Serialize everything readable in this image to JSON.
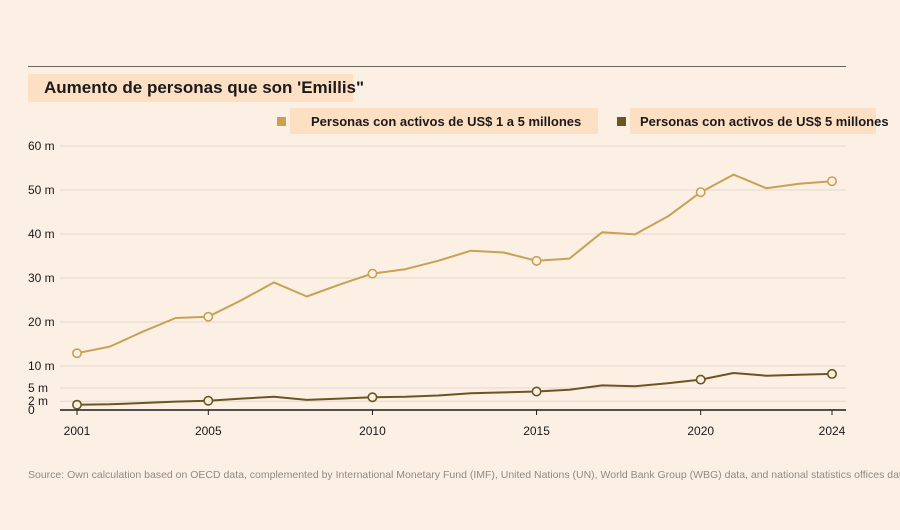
{
  "title": "Aumento de personas que son 'Emillis\"",
  "source": "Source: Own calculation based on OECD data, complemented by International Monetary Fund (IMF), United Nations (UN), World Bank Group (WBG) data, and national statistics offices data.",
  "colors": {
    "series1": "#c9a055",
    "series2": "#6b5522",
    "background": "#fcf0e5",
    "legend_bg": "#fde0c4"
  },
  "chart_data": {
    "type": "line",
    "title": "Aumento de personas que son 'Emillis\"",
    "xlabel": "",
    "ylabel": "",
    "xlim": [
      2001,
      2024
    ],
    "ylim": [
      0,
      60
    ],
    "x_ticks": [
      2001,
      2005,
      2010,
      2015,
      2020,
      2024
    ],
    "y_ticks": [
      {
        "value": 0,
        "label": "0"
      },
      {
        "value": 2,
        "label": "2 m"
      },
      {
        "value": 5,
        "label": "5 m"
      },
      {
        "value": 10,
        "label": "10 m"
      },
      {
        "value": 20,
        "label": "20 m"
      },
      {
        "value": 30,
        "label": "30 m"
      },
      {
        "value": 40,
        "label": "40 m"
      },
      {
        "value": 50,
        "label": "50 m"
      },
      {
        "value": 60,
        "label": "60 m"
      }
    ],
    "grid": true,
    "legend_position": "top-right",
    "x": [
      2001,
      2002,
      2003,
      2004,
      2005,
      2006,
      2007,
      2008,
      2009,
      2010,
      2011,
      2012,
      2013,
      2014,
      2015,
      2016,
      2017,
      2018,
      2019,
      2020,
      2021,
      2022,
      2023,
      2024
    ],
    "series": [
      {
        "name": "Personas con activos de US$ 1 a 5 millones",
        "values": [
          12.9,
          14.4,
          17.8,
          20.9,
          21.2,
          24.9,
          29.0,
          25.8,
          28.5,
          31.0,
          32.0,
          33.9,
          36.2,
          35.8,
          33.9,
          34.4,
          40.4,
          39.9,
          44.0,
          49.5,
          53.5,
          50.4,
          51.4,
          52.0
        ],
        "markers": [
          2001,
          2005,
          2010,
          2015,
          2020,
          2024
        ]
      },
      {
        "name": "Personas con activos de US$ 5 millones",
        "values": [
          1.2,
          1.3,
          1.6,
          1.9,
          2.1,
          2.6,
          3.0,
          2.3,
          2.6,
          2.9,
          3.0,
          3.3,
          3.8,
          4.0,
          4.2,
          4.6,
          5.6,
          5.4,
          6.1,
          6.9,
          8.4,
          7.8,
          8.0,
          8.2
        ],
        "markers": [
          2001,
          2005,
          2010,
          2015,
          2020,
          2024
        ]
      }
    ]
  }
}
